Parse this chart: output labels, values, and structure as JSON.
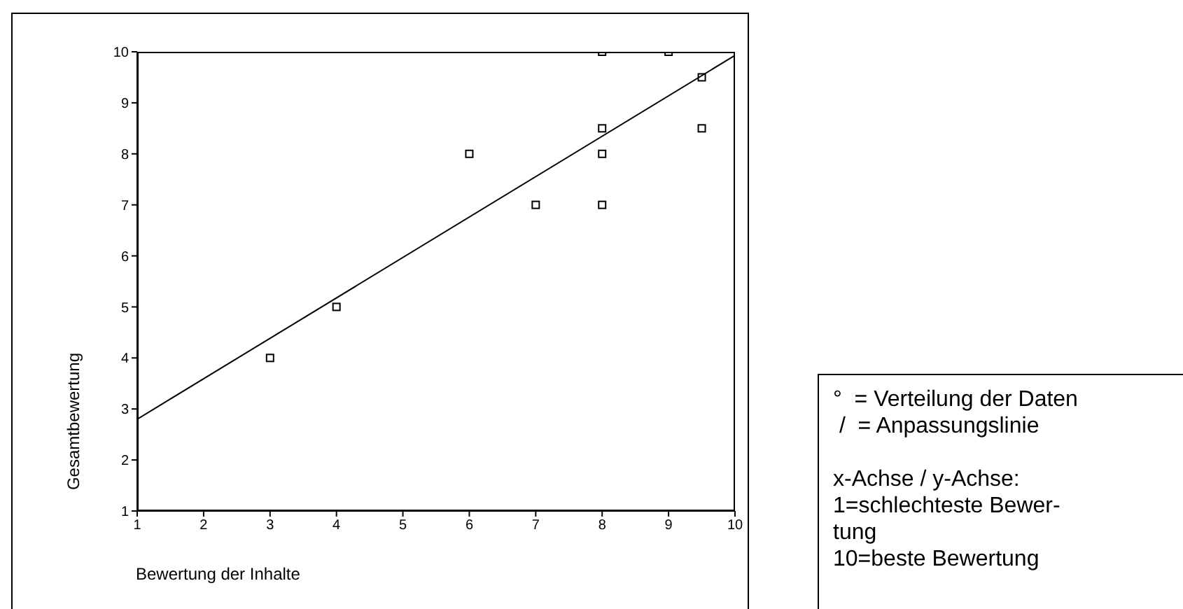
{
  "chart_data": {
    "type": "scatter",
    "xlabel": "Bewertung der Inhalte",
    "ylabel": "Gesamtbewertung",
    "xlim": [
      1,
      10
    ],
    "ylim": [
      1,
      10
    ],
    "xticks": [
      1,
      2,
      3,
      4,
      5,
      6,
      7,
      8,
      9,
      10
    ],
    "yticks": [
      1,
      2,
      3,
      4,
      5,
      6,
      7,
      8,
      9,
      10
    ],
    "grid": false,
    "marker": "square",
    "series": [
      {
        "color": "#000000",
        "x": [
          3,
          4,
          6,
          7,
          8,
          8,
          8,
          8,
          9,
          9.5,
          9.5
        ],
        "values": [
          4,
          5,
          8,
          7,
          10,
          8.5,
          8,
          7,
          10,
          9.5,
          8.5
        ]
      },
      {
        "type": "line",
        "color": "#000000",
        "marker": "none",
        "x": [
          1,
          10
        ],
        "values": [
          2.8,
          9.93
        ]
      }
    ],
    "annotations": [
      "°  = Verteilung der Daten",
      " /  = Anpassungslinie",
      "x-Achse / y-Achse:",
      "1=schlechteste Bewer-tung",
      "10=beste Bewertung"
    ]
  }
}
